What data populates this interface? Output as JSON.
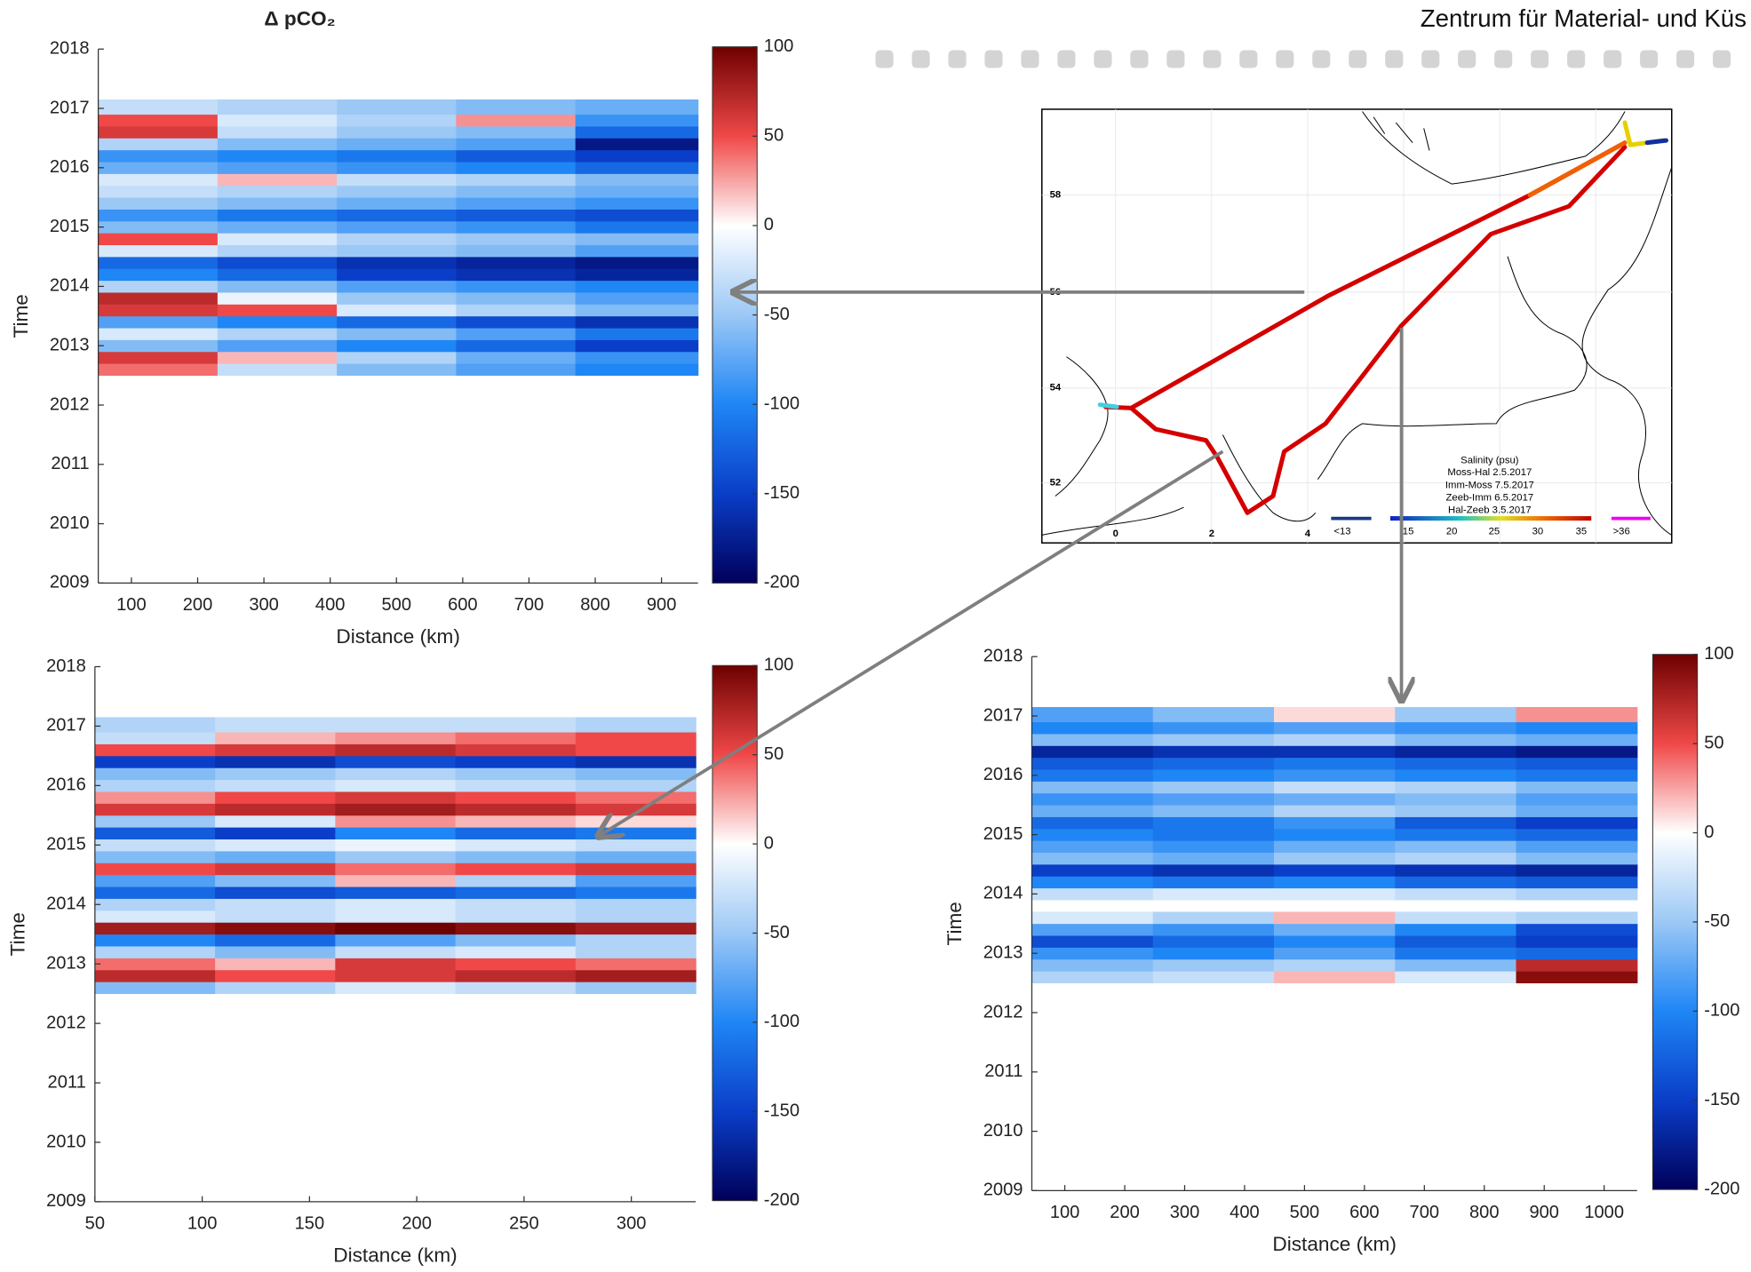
{
  "header": "Zentrum für Material- und Küs",
  "colormap": [
    "#00005a",
    "#0a3ec8",
    "#1f86f5",
    "#9cc8f5",
    "#ffffff",
    "#f04848",
    "#6e0000"
  ],
  "map": {
    "lat_labels": [
      "58",
      "56",
      "54",
      "52"
    ],
    "lon_labels": [
      "0",
      "2",
      "4"
    ],
    "legend_title": "Salinity (psu)",
    "legend_lines": [
      "Moss-Hal 2.5.2017",
      "Imm-Moss 7.5.2017",
      "Zeeb-Imm 6.5.2017",
      "Hal-Zeeb 3.5.2017"
    ],
    "scale_labels": [
      "<13",
      "15",
      "20",
      "25",
      "30",
      "35",
      ">36"
    ]
  },
  "chart_data": [
    {
      "type": "heatmap",
      "title": "Δ pCO₂",
      "xlabel": "Distance (km)",
      "ylabel": "Time",
      "xlim": [
        50,
        955
      ],
      "xticks": [
        100,
        200,
        300,
        400,
        500,
        600,
        700,
        800,
        900
      ],
      "ylim": [
        2009,
        2018
      ],
      "yticks": [
        2009,
        2010,
        2011,
        2012,
        2013,
        2014,
        2015,
        2016,
        2017,
        2018
      ],
      "clim": [
        -200,
        100
      ],
      "cticks": [
        -200,
        -150,
        -100,
        -50,
        0,
        50,
        100
      ],
      "xbins": [
        50,
        230,
        410,
        590,
        770,
        955
      ],
      "ybins": [
        2012.5,
        2012.7,
        2012.9,
        2013.1,
        2013.3,
        2013.5,
        2013.7,
        2013.9,
        2014.1,
        2014.3,
        2014.5,
        2014.7,
        2014.9,
        2015.1,
        2015.3,
        2015.5,
        2015.7,
        2015.9,
        2016.1,
        2016.3,
        2016.5,
        2016.7,
        2016.9,
        2017.15
      ],
      "z": [
        [
          40,
          -30,
          -60,
          -80,
          -100
        ],
        [
          60,
          20,
          -40,
          -70,
          -90
        ],
        [
          -60,
          -80,
          -100,
          -120,
          -150
        ],
        [
          -20,
          -40,
          -60,
          -80,
          -110
        ],
        [
          -80,
          -100,
          -120,
          -140,
          -160
        ],
        [
          60,
          50,
          -20,
          -40,
          -60
        ],
        [
          70,
          -10,
          -50,
          -60,
          -80
        ],
        [
          -40,
          -60,
          -80,
          -90,
          -100
        ],
        [
          -100,
          -120,
          -150,
          -160,
          -170
        ],
        [
          -120,
          -140,
          -160,
          -170,
          -180
        ],
        [
          -20,
          -40,
          -50,
          -60,
          -80
        ],
        [
          50,
          -20,
          -40,
          -50,
          -60
        ],
        [
          -60,
          -70,
          -80,
          -90,
          -110
        ],
        [
          -90,
          -110,
          -120,
          -130,
          -140
        ],
        [
          -50,
          -60,
          -70,
          -80,
          -90
        ],
        [
          -30,
          -40,
          -50,
          -60,
          -70
        ],
        [
          -20,
          20,
          -30,
          -40,
          -60
        ],
        [
          -70,
          -80,
          -90,
          -100,
          -120
        ],
        [
          -90,
          -100,
          -110,
          -130,
          -150
        ],
        [
          -40,
          -60,
          -70,
          -80,
          -180
        ],
        [
          60,
          -30,
          -50,
          -60,
          -120
        ],
        [
          50,
          -20,
          -40,
          30,
          -90
        ],
        [
          -30,
          -40,
          -50,
          -60,
          -70
        ]
      ]
    },
    {
      "type": "heatmap",
      "xlabel": "Distance (km)",
      "ylabel": "Time",
      "xlim": [
        50,
        330
      ],
      "xticks": [
        50,
        100,
        150,
        200,
        250,
        300
      ],
      "ylim": [
        2009,
        2018
      ],
      "yticks": [
        2009,
        2010,
        2011,
        2012,
        2013,
        2014,
        2015,
        2016,
        2017,
        2018
      ],
      "clim": [
        -200,
        100
      ],
      "cticks": [
        -200,
        -150,
        -100,
        -50,
        0,
        50,
        100
      ],
      "xbins": [
        50,
        106,
        162,
        218,
        274,
        330
      ],
      "ybins": [
        2012.5,
        2012.7,
        2012.9,
        2013.1,
        2013.3,
        2013.5,
        2013.7,
        2013.9,
        2014.1,
        2014.3,
        2014.5,
        2014.7,
        2014.9,
        2015.1,
        2015.3,
        2015.5,
        2015.7,
        2015.9,
        2016.1,
        2016.3,
        2016.5,
        2016.7,
        2016.9,
        2017.15
      ],
      "z": [
        [
          -60,
          -40,
          -20,
          -30,
          -50
        ],
        [
          70,
          50,
          60,
          70,
          80
        ],
        [
          40,
          20,
          60,
          50,
          40
        ],
        [
          -40,
          -60,
          -30,
          -20,
          -40
        ],
        [
          -100,
          -120,
          -80,
          -60,
          -40
        ],
        [
          80,
          90,
          100,
          90,
          80
        ],
        [
          -20,
          -30,
          -20,
          -30,
          -40
        ],
        [
          -40,
          -30,
          -20,
          -30,
          -40
        ],
        [
          -120,
          -140,
          -130,
          -120,
          -110
        ],
        [
          -80,
          -60,
          20,
          -40,
          -80
        ],
        [
          50,
          60,
          40,
          50,
          60
        ],
        [
          -60,
          -70,
          -50,
          -60,
          -70
        ],
        [
          -30,
          -20,
          -10,
          -20,
          -30
        ],
        [
          -130,
          -150,
          -100,
          -120,
          -110
        ],
        [
          -50,
          -20,
          30,
          20,
          10
        ],
        [
          60,
          70,
          80,
          70,
          60
        ],
        [
          30,
          50,
          60,
          50,
          40
        ],
        [
          -40,
          -30,
          -20,
          -30,
          -40
        ],
        [
          -60,
          -50,
          -40,
          -50,
          -60
        ],
        [
          -150,
          -160,
          -140,
          -150,
          -160
        ],
        [
          50,
          60,
          70,
          60,
          50
        ],
        [
          -30,
          20,
          30,
          40,
          50
        ],
        [
          -40,
          -30,
          -30,
          -30,
          -40
        ]
      ]
    },
    {
      "type": "heatmap",
      "xlabel": "Distance (km)",
      "ylabel": "Time",
      "xlim": [
        45,
        1055
      ],
      "xticks": [
        100,
        200,
        300,
        400,
        500,
        600,
        700,
        800,
        900,
        1000
      ],
      "ylim": [
        2009,
        2018
      ],
      "yticks": [
        2009,
        2010,
        2011,
        2012,
        2013,
        2014,
        2015,
        2016,
        2017,
        2018
      ],
      "clim": [
        -200,
        100
      ],
      "cticks": [
        -200,
        -150,
        -100,
        -50,
        0,
        50,
        100
      ],
      "xbins": [
        45,
        247,
        449,
        651,
        853,
        1055
      ],
      "ybins": [
        2012.5,
        2012.7,
        2012.9,
        2013.1,
        2013.3,
        2013.5,
        2013.7,
        2013.9,
        2014.1,
        2014.3,
        2014.5,
        2014.7,
        2014.9,
        2015.1,
        2015.3,
        2015.5,
        2015.7,
        2015.9,
        2016.1,
        2016.3,
        2016.5,
        2016.7,
        2016.9,
        2017.15
      ],
      "z": [
        [
          -40,
          -30,
          20,
          -20,
          90
        ],
        [
          -60,
          -50,
          -40,
          -60,
          70
        ],
        [
          -90,
          -100,
          -80,
          -110,
          -120
        ],
        [
          -140,
          -120,
          -100,
          -130,
          -150
        ],
        [
          -80,
          -90,
          -70,
          -100,
          -140
        ],
        [
          -20,
          -40,
          20,
          -30,
          -40
        ],
        [
          null,
          null,
          null,
          null,
          null
        ],
        [
          -30,
          -20,
          -20,
          -30,
          -40
        ],
        [
          -100,
          -110,
          -100,
          -120,
          -130
        ],
        [
          -150,
          -160,
          -150,
          -160,
          -170
        ],
        [
          -60,
          -70,
          -50,
          -40,
          -60
        ],
        [
          -80,
          -90,
          -70,
          -60,
          -80
        ],
        [
          -100,
          -110,
          -100,
          -110,
          -120
        ],
        [
          -120,
          -110,
          -90,
          -130,
          -150
        ],
        [
          -70,
          -60,
          -40,
          -50,
          -70
        ],
        [
          -90,
          -80,
          -70,
          -60,
          -80
        ],
        [
          -60,
          -50,
          -30,
          -40,
          -60
        ],
        [
          -110,
          -100,
          -90,
          -100,
          -110
        ],
        [
          -130,
          -120,
          -110,
          -120,
          -130
        ],
        [
          -170,
          -160,
          -160,
          -170,
          -180
        ],
        [
          -60,
          -50,
          -40,
          -60,
          -70
        ],
        [
          -100,
          -90,
          -80,
          -90,
          -100
        ],
        [
          -80,
          -60,
          10,
          -50,
          30
        ]
      ]
    }
  ]
}
